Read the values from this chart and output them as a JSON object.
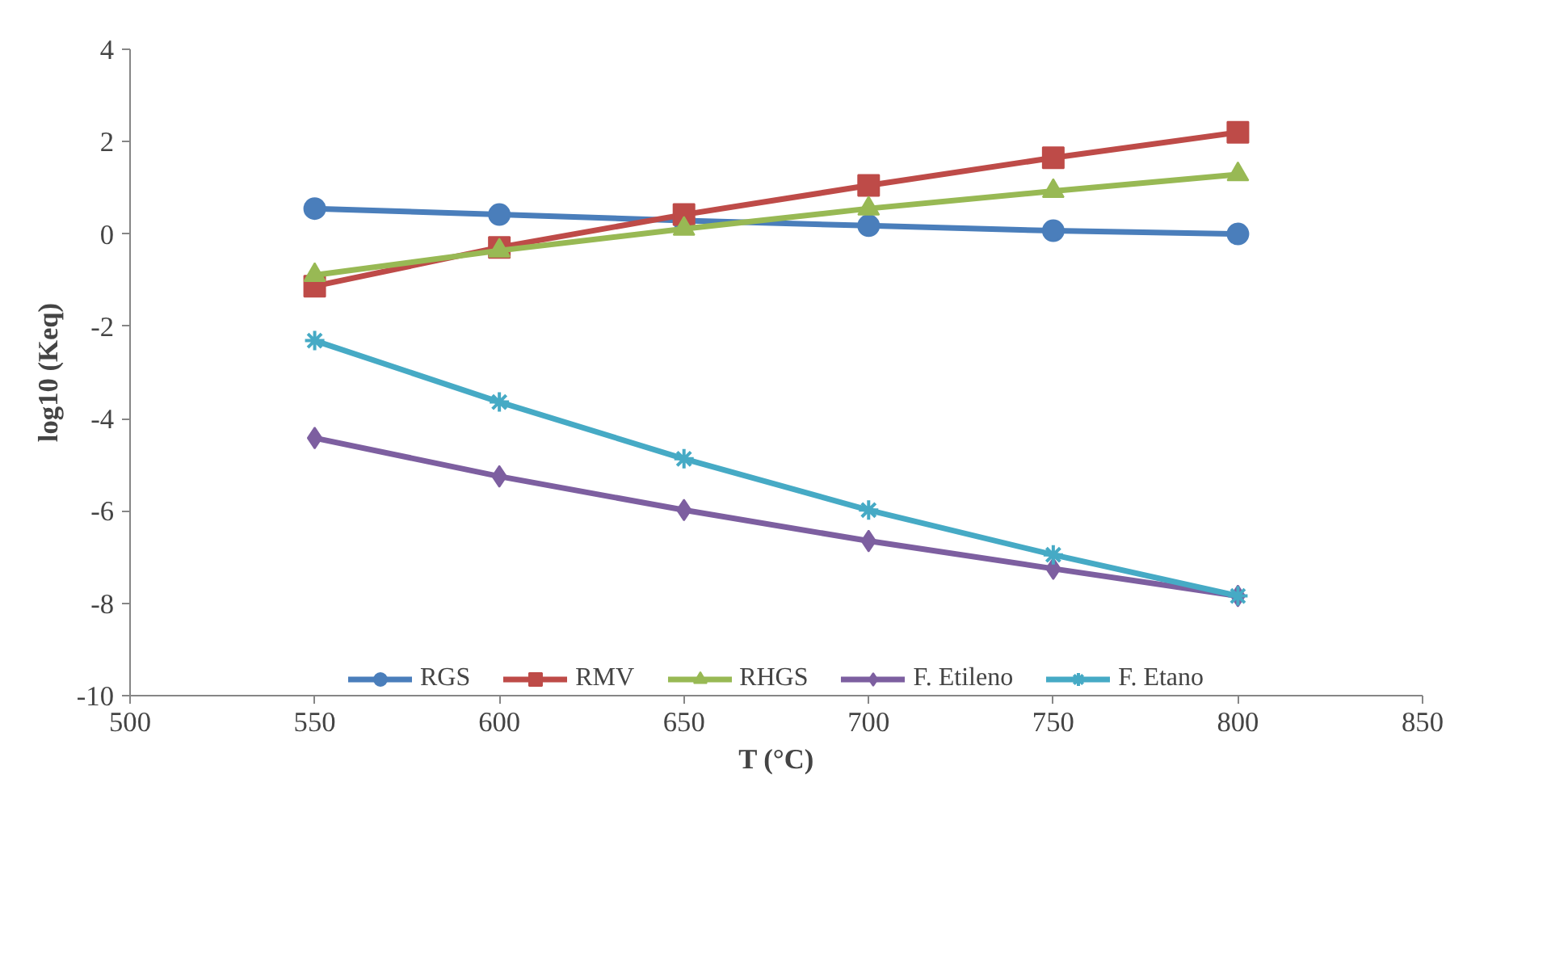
{
  "chart_data": {
    "type": "line",
    "xlabel": "T (°C)",
    "ylabel": "log10 (Keq)",
    "x": [
      550,
      600,
      650,
      700,
      750,
      800
    ],
    "xlim": [
      500,
      850
    ],
    "xticks": [
      500,
      550,
      600,
      650,
      700,
      750,
      800,
      850
    ],
    "ylim": [
      -10,
      4
    ],
    "yticks": [
      -10,
      -8,
      -6,
      -4,
      -2,
      0,
      2,
      4
    ],
    "grid": false,
    "legend": "bottom",
    "line_style": "solid",
    "series": [
      {
        "name": "RGS",
        "color": "#4a7ebb",
        "marker": "circle",
        "values": [
          0.55,
          0.42,
          0.29,
          0.18,
          0.07,
          0.0
        ]
      },
      {
        "name": "RMV",
        "color": "#be4b48",
        "marker": "square",
        "values": [
          -1.13,
          -0.29,
          0.42,
          1.05,
          1.65,
          2.2
        ]
      },
      {
        "name": "RHGS",
        "color": "#98b954",
        "marker": "triangle",
        "values": [
          -0.89,
          -0.36,
          0.11,
          0.55,
          0.93,
          1.29
        ]
      },
      {
        "name": "F. Etileno",
        "color": "#7d5fa0",
        "marker": "diamond",
        "values": [
          -4.42,
          -5.25,
          -5.98,
          -6.65,
          -7.25,
          -7.84
        ]
      },
      {
        "name": "F. Etano",
        "color": "#46aac5",
        "marker": "cross",
        "values": [
          -2.31,
          -3.64,
          -4.87,
          -5.98,
          -6.95,
          -7.84
        ]
      }
    ]
  }
}
